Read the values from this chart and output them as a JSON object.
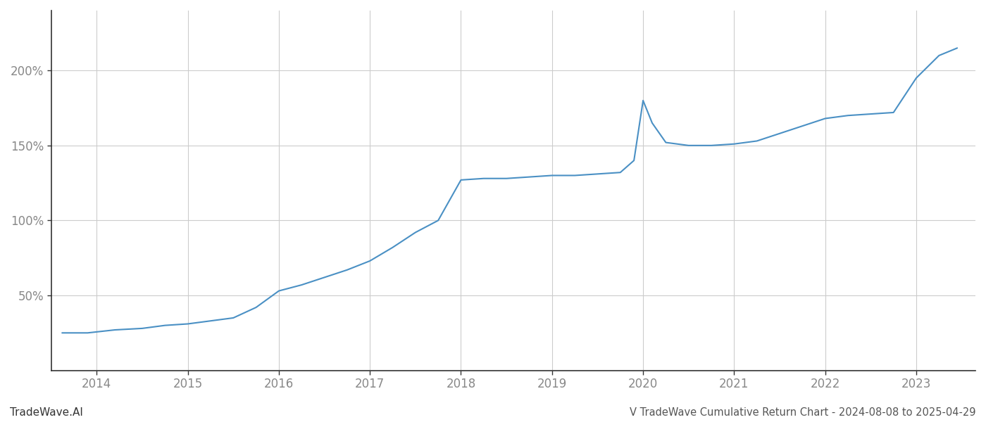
{
  "title": "V TradeWave Cumulative Return Chart - 2024-08-08 to 2025-04-29",
  "watermark": "TradeWave.AI",
  "line_color": "#4a90c4",
  "background_color": "#ffffff",
  "grid_color": "#cccccc",
  "x_years": [
    2014,
    2015,
    2016,
    2017,
    2018,
    2019,
    2020,
    2021,
    2022,
    2023
  ],
  "x_values": [
    2013.62,
    2013.9,
    2014.2,
    2014.5,
    2014.75,
    2015.0,
    2015.25,
    2015.5,
    2015.75,
    2016.0,
    2016.25,
    2016.5,
    2016.75,
    2017.0,
    2017.25,
    2017.5,
    2017.75,
    2018.0,
    2018.25,
    2018.5,
    2018.75,
    2019.0,
    2019.25,
    2019.5,
    2019.75,
    2019.9,
    2020.0,
    2020.1,
    2020.25,
    2020.5,
    2020.75,
    2021.0,
    2021.25,
    2021.5,
    2021.75,
    2022.0,
    2022.25,
    2022.5,
    2022.75,
    2023.0,
    2023.25,
    2023.45
  ],
  "y_values": [
    25,
    25,
    27,
    28,
    30,
    31,
    33,
    35,
    42,
    53,
    57,
    62,
    67,
    73,
    82,
    92,
    100,
    127,
    128,
    128,
    129,
    130,
    130,
    131,
    132,
    140,
    180,
    165,
    152,
    150,
    150,
    151,
    153,
    158,
    163,
    168,
    170,
    171,
    172,
    195,
    210,
    215
  ],
  "ylim": [
    0,
    240
  ],
  "yticks": [
    50,
    100,
    150,
    200
  ],
  "ytick_labels": [
    "50%",
    "100%",
    "150%",
    "200%"
  ],
  "xlim": [
    2013.5,
    2023.65
  ],
  "title_fontsize": 10.5,
  "tick_fontsize": 12,
  "watermark_fontsize": 11
}
